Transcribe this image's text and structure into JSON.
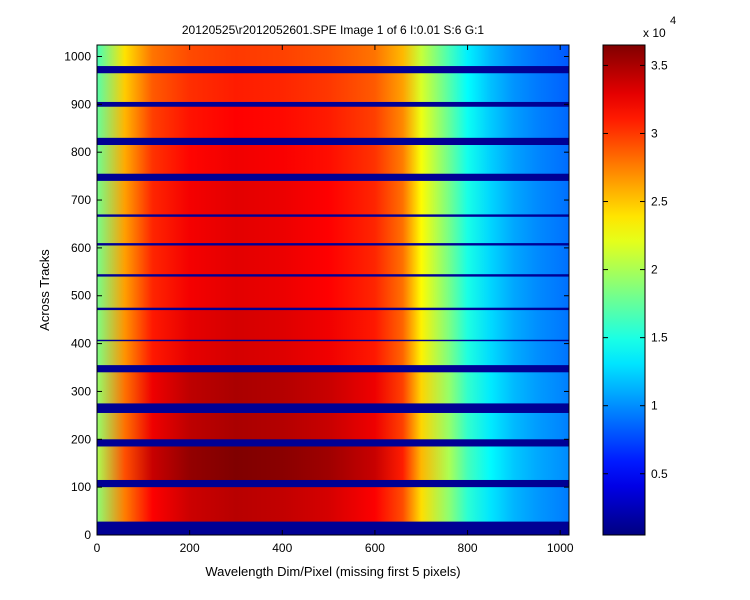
{
  "window": {
    "title": "20120525\\r2012052601.SPE  Image 1 of 6  I:0.01  S:6  G:1"
  },
  "chart_data": {
    "type": "heatmap",
    "title": "20120525\\r2012052601.SPE  Image 1 of 6  I:0.01  S:6  G:1",
    "xlabel": "Wavelength Dim/Pixel (missing first 5 pixels)",
    "ylabel": "Across Tracks",
    "xlim": [
      0,
      1019
    ],
    "ylim": [
      0,
      1024
    ],
    "x_ticks": [
      0,
      200,
      400,
      600,
      800,
      1000
    ],
    "y_ticks": [
      0,
      100,
      200,
      300,
      400,
      500,
      600,
      700,
      800,
      900,
      1000
    ],
    "colormap": "jet",
    "clim": [
      500,
      36500
    ],
    "colorbar": {
      "ticks": [
        0.5,
        1,
        1.5,
        2,
        2.5,
        3,
        3.5
      ],
      "tick_labels": [
        "0.5",
        "1",
        "1.5",
        "2",
        "2.5",
        "3",
        "3.5"
      ],
      "multiplier": "x 10",
      "exponent": "4"
    },
    "gaps_y": [
      [
        0,
        28
      ],
      [
        100,
        115
      ],
      [
        185,
        200
      ],
      [
        255,
        275
      ],
      [
        340,
        355
      ],
      [
        405,
        408
      ],
      [
        470,
        475
      ],
      [
        540,
        545
      ],
      [
        605,
        610
      ],
      [
        665,
        670
      ],
      [
        740,
        755
      ],
      [
        815,
        830
      ],
      [
        895,
        905
      ],
      [
        965,
        980
      ]
    ],
    "tracks": [
      {
        "y_range": [
          28,
          100
        ],
        "peak": 34500
      },
      {
        "y_range": [
          115,
          185
        ],
        "peak": 36500
      },
      {
        "y_range": [
          200,
          255
        ],
        "peak": 35000
      },
      {
        "y_range": [
          275,
          340
        ],
        "peak": 35000
      },
      {
        "y_range": [
          355,
          405
        ],
        "peak": 33500
      },
      {
        "y_range": [
          408,
          470
        ],
        "peak": 33500
      },
      {
        "y_range": [
          475,
          540
        ],
        "peak": 33000
      },
      {
        "y_range": [
          545,
          605
        ],
        "peak": 33000
      },
      {
        "y_range": [
          610,
          665
        ],
        "peak": 33000
      },
      {
        "y_range": [
          670,
          740
        ],
        "peak": 33000
      },
      {
        "y_range": [
          755,
          815
        ],
        "peak": 32500
      },
      {
        "y_range": [
          830,
          895
        ],
        "peak": 32000
      },
      {
        "y_range": [
          905,
          965
        ],
        "peak": 31000
      },
      {
        "y_range": [
          980,
          1024
        ],
        "peak": 30000
      }
    ],
    "spectral_profile": {
      "x": [
        0,
        60,
        120,
        200,
        300,
        400,
        500,
        600,
        660,
        700,
        760,
        800,
        850,
        900,
        950,
        1000,
        1019
      ],
      "relative": [
        0.55,
        0.8,
        0.93,
        0.98,
        1.0,
        0.99,
        0.97,
        0.93,
        0.85,
        0.7,
        0.55,
        0.45,
        0.38,
        0.33,
        0.3,
        0.28,
        0.27
      ]
    },
    "grid": false,
    "legend": "colorbar-right"
  }
}
